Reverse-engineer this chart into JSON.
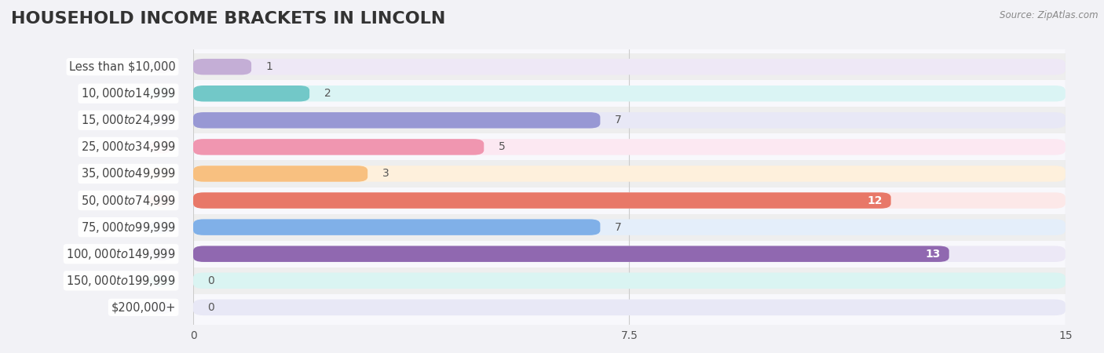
{
  "title": "HOUSEHOLD INCOME BRACKETS IN LINCOLN",
  "source": "Source: ZipAtlas.com",
  "categories": [
    "Less than $10,000",
    "$10,000 to $14,999",
    "$15,000 to $24,999",
    "$25,000 to $34,999",
    "$35,000 to $49,999",
    "$50,000 to $74,999",
    "$75,000 to $99,999",
    "$100,000 to $149,999",
    "$150,000 to $199,999",
    "$200,000+"
  ],
  "values": [
    1,
    2,
    7,
    5,
    3,
    12,
    7,
    13,
    0,
    0
  ],
  "bar_colors": [
    "#c4aed6",
    "#72c8c8",
    "#9898d4",
    "#f096b0",
    "#f8c080",
    "#e87868",
    "#80b0e8",
    "#9068b0",
    "#60c0b8",
    "#b0b0dc"
  ],
  "bar_bg_colors": [
    "#eee8f6",
    "#daf4f4",
    "#e8e8f6",
    "#fce8f2",
    "#fef0dc",
    "#fce8e8",
    "#e4eefa",
    "#ece8f6",
    "#daf4f2",
    "#e8e8f6"
  ],
  "xlim": [
    0,
    15
  ],
  "xticks": [
    0,
    7.5,
    15
  ],
  "background_color": "#f2f2f6",
  "plot_bg_color": "#f8f8fc",
  "row_bg_odd": "#efefef",
  "row_bg_even": "#f8f8fc",
  "title_fontsize": 16,
  "label_fontsize": 10.5,
  "value_fontsize": 10
}
